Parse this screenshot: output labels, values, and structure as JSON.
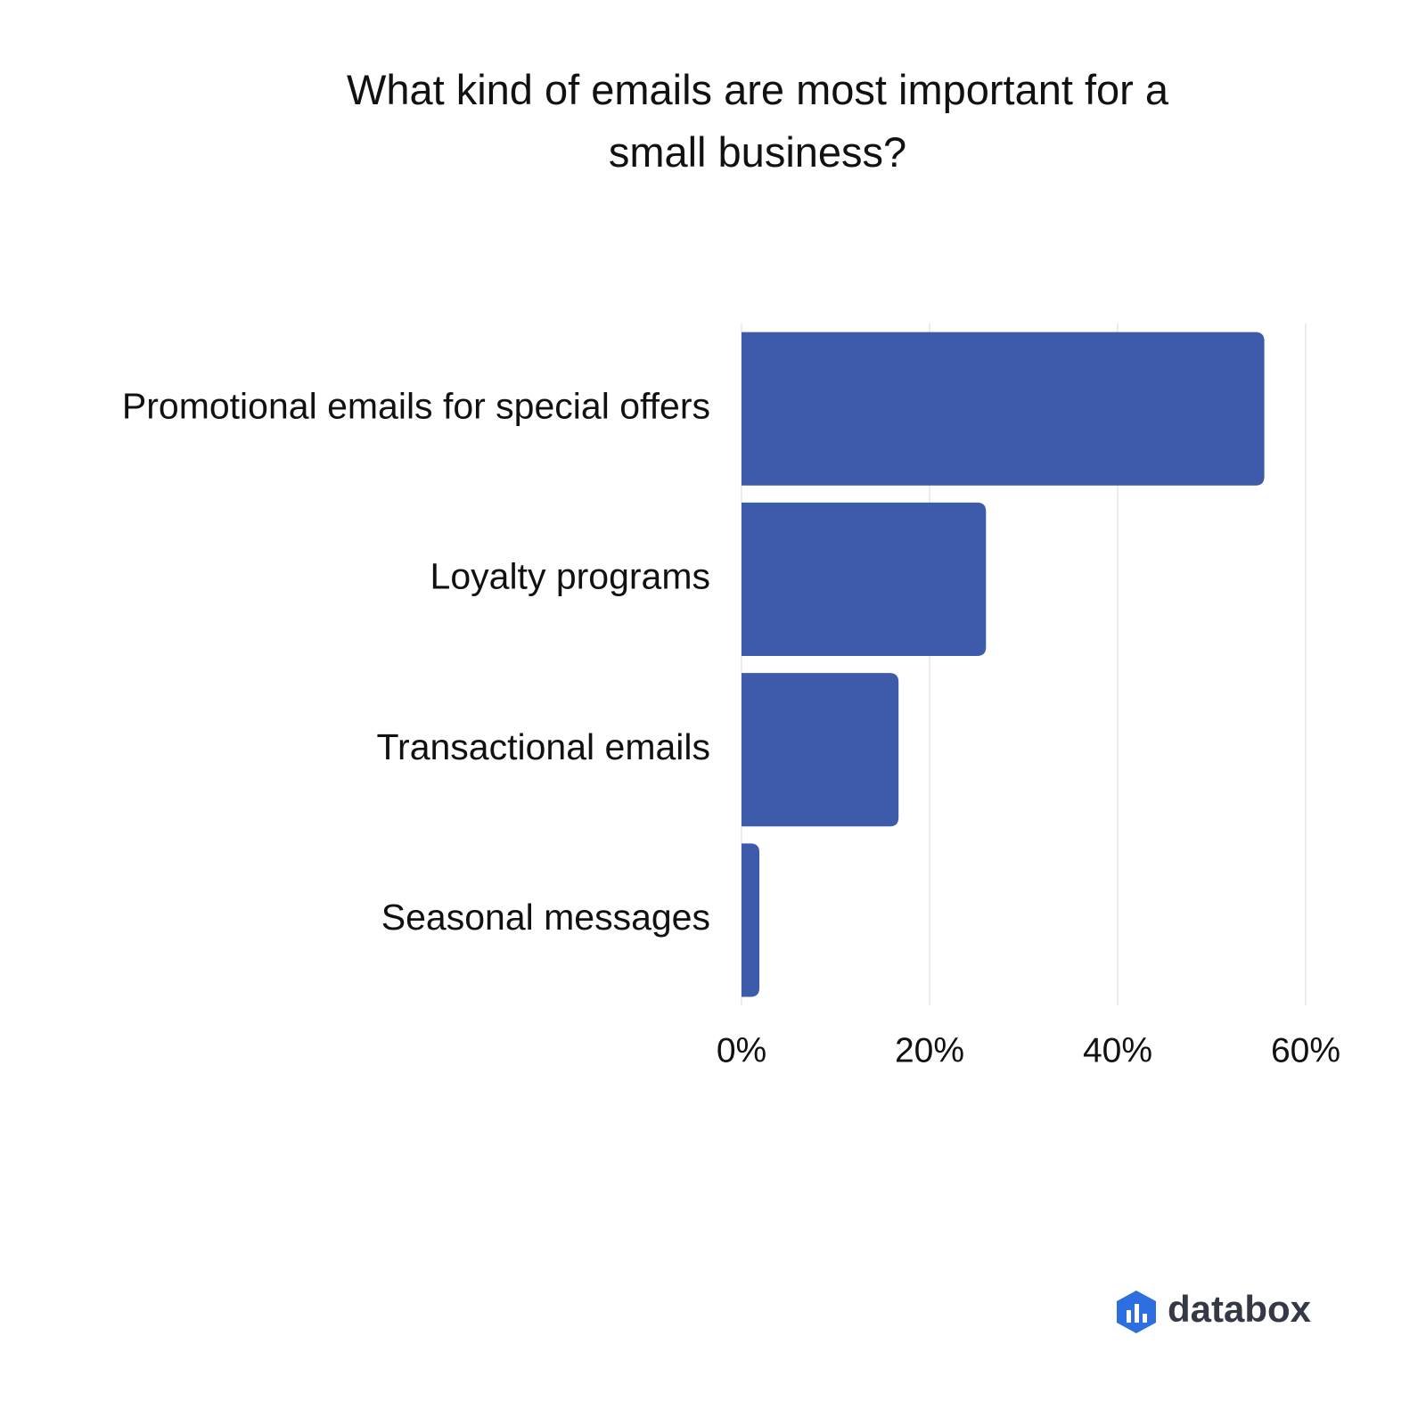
{
  "chart_data": {
    "type": "hbar",
    "title": "What kind of emails are most important for a small business?",
    "categories": [
      "Promotional emails for special offers",
      "Loyalty programs",
      "Transactional emails",
      "Seasonal messages"
    ],
    "values": [
      55.6,
      26.0,
      16.7,
      1.9
    ],
    "color": "#3d5aab",
    "xlim": [
      0,
      60
    ],
    "xticks": [
      {
        "value": 0,
        "label": "0%"
      },
      {
        "value": 20,
        "label": "20%"
      },
      {
        "value": 40,
        "label": "40%"
      },
      {
        "value": 60,
        "label": "60%"
      }
    ],
    "grid": true,
    "brand": "databox"
  }
}
